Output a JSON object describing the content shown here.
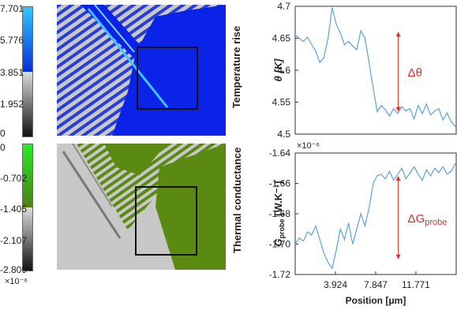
{
  "maps": {
    "top": {
      "colorbar_ticks": [
        "7.701",
        "5.776",
        "3.851",
        "1.952",
        "0"
      ],
      "colorbar_top": "#2ec8ff",
      "colorbar_bottom": "#0a2dd8",
      "colorbar_gray_top": "#dddddd",
      "colorbar_gray_bottom": "#111111",
      "overlay_color": "#0a23e6",
      "label": "Temperature rise"
    },
    "bottom": {
      "colorbar_ticks": [
        "0",
        "-0.702",
        "-1.405",
        "-2.107",
        "-2.809"
      ],
      "colorbar_top": "#22ee22",
      "colorbar_bottom": "#4f7d16",
      "colorbar_gray_top": "#dddddd",
      "colorbar_gray_bottom": "#111111",
      "overlay_color": "#5a8a12",
      "label": "Thermal conductance",
      "scale_note": "×10⁻⁶"
    },
    "background_gray": "#c8c8c8"
  },
  "chart_data": [
    {
      "type": "line",
      "ylabel": "θ [K]",
      "ylim": [
        4.5,
        4.7
      ],
      "yticks": [
        "4.7",
        "4.65",
        "4.6",
        "4.55",
        "4.5"
      ],
      "xlim": [
        0,
        15.7
      ],
      "line_color": "#5ba3d9",
      "annotation": "Δθ",
      "annotation_color": "#e03030",
      "x": [
        0,
        0.4,
        0.8,
        1.2,
        1.6,
        2.0,
        2.4,
        2.8,
        3.2,
        3.6,
        4.0,
        4.4,
        4.8,
        5.2,
        5.6,
        6.0,
        6.4,
        6.8,
        7.2,
        7.6,
        8.0,
        8.4,
        8.8,
        9.2,
        9.6,
        10.0,
        10.4,
        10.8,
        11.2,
        11.6,
        12.0,
        12.4,
        12.8,
        13.2,
        13.6,
        14.0,
        14.4,
        14.8,
        15.2,
        15.7
      ],
      "y": [
        4.655,
        4.65,
        4.645,
        4.652,
        4.64,
        4.63,
        4.612,
        4.62,
        4.65,
        4.698,
        4.672,
        4.658,
        4.64,
        4.645,
        4.638,
        4.632,
        4.662,
        4.65,
        4.612,
        4.572,
        4.535,
        4.545,
        4.538,
        4.528,
        4.54,
        4.532,
        4.543,
        4.536,
        4.54,
        4.524,
        4.545,
        4.532,
        4.547,
        4.53,
        4.536,
        4.54,
        4.522,
        4.533,
        4.52,
        4.51
      ]
    },
    {
      "type": "line",
      "ylabel": "G",
      "ylabel_sub": "probe",
      "ylabel_unit": " [W.K⁻¹]",
      "scale_note": "×10⁻⁶",
      "ylim": [
        -1.72,
        -1.64
      ],
      "yticks": [
        "-1.64",
        "-1.66",
        "-1.68",
        "-1.70",
        "-1.72"
      ],
      "xlim": [
        0,
        15.7
      ],
      "xlabel": "Position [μm]",
      "xticks": [
        {
          "v": 3.924,
          "label": "3.924"
        },
        {
          "v": 7.847,
          "label": "7.847"
        },
        {
          "v": 11.771,
          "label": "11.771"
        }
      ],
      "line_color": "#5ba3d9",
      "annotation": "ΔG",
      "annotation_sub": "probe",
      "annotation_color": "#e03030",
      "x": [
        0,
        0.4,
        0.8,
        1.2,
        1.6,
        2.0,
        2.4,
        2.8,
        3.2,
        3.6,
        4.0,
        4.4,
        4.8,
        5.2,
        5.6,
        6.0,
        6.4,
        6.8,
        7.2,
        7.6,
        8.0,
        8.4,
        8.8,
        9.2,
        9.6,
        10.0,
        10.4,
        10.8,
        11.2,
        11.6,
        12.0,
        12.4,
        12.8,
        13.2,
        13.6,
        14.0,
        14.4,
        14.8,
        15.2,
        15.7
      ],
      "y": [
        -1.7,
        -1.696,
        -1.698,
        -1.692,
        -1.694,
        -1.688,
        -1.697,
        -1.706,
        -1.712,
        -1.716,
        -1.704,
        -1.69,
        -1.697,
        -1.686,
        -1.7,
        -1.69,
        -1.68,
        -1.688,
        -1.676,
        -1.66,
        -1.655,
        -1.654,
        -1.657,
        -1.652,
        -1.658,
        -1.654,
        -1.65,
        -1.657,
        -1.653,
        -1.649,
        -1.654,
        -1.658,
        -1.651,
        -1.655,
        -1.65,
        -1.653,
        -1.649,
        -1.654,
        -1.652,
        -1.646
      ]
    }
  ]
}
